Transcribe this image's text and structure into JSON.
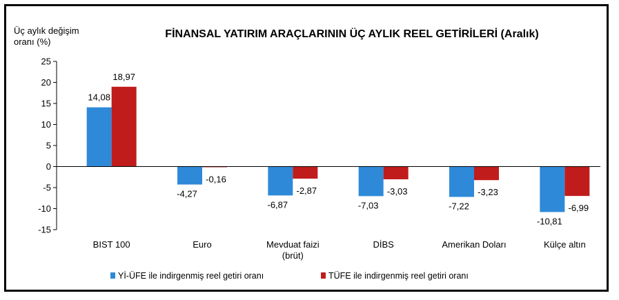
{
  "chart_data": {
    "type": "bar",
    "title": "FİNANSAL YATIRIM ARAÇLARININ ÜÇ AYLIK REEL GETİRİLERİ (Aralık)",
    "ylabel": [
      "Üç aylık değişim",
      "oranı (%)"
    ],
    "xlabel": "",
    "ylim": [
      -15,
      25
    ],
    "yticks": [
      25,
      20,
      15,
      10,
      5,
      0,
      -5,
      -10,
      -15
    ],
    "grid": false,
    "legend_position": "bottom",
    "categories": [
      [
        "BIST 100"
      ],
      [
        "Euro"
      ],
      [
        "Mevduat faizi",
        "(brüt)"
      ],
      [
        "DİBS"
      ],
      [
        "Amerikan Doları"
      ],
      [
        "Külçe altın"
      ]
    ],
    "series": [
      {
        "name": "Yİ-ÜFE ile indirgenmiş reel getiri oranı",
        "color": "#2e8ad8",
        "values": [
          14.08,
          -4.27,
          -6.87,
          -7.03,
          -7.22,
          -10.81
        ],
        "labels": [
          "14,08",
          "-4,27",
          "-6,87",
          "-7,03",
          "-7,22",
          "-10,81"
        ]
      },
      {
        "name": "TÜFE ile indirgenmiş reel getiri oranı",
        "color": "#c01c1c",
        "values": [
          18.97,
          -0.16,
          -2.87,
          -3.03,
          -3.23,
          -6.99
        ],
        "labels": [
          "18,97",
          "-0,16",
          "-2,87",
          "-3,03",
          "-3,23",
          "-6,99"
        ]
      }
    ]
  }
}
